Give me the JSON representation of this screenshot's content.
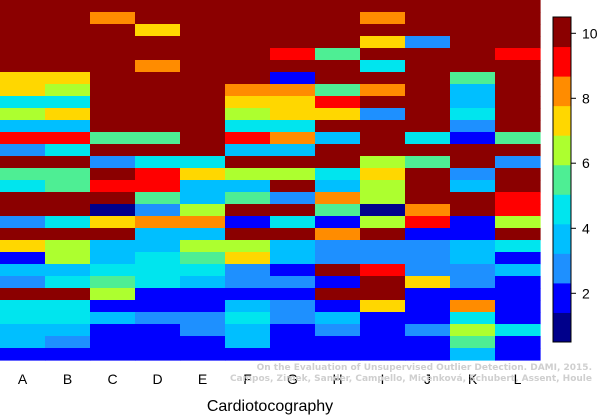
{
  "chart_data": {
    "type": "heatmap",
    "title": "",
    "xlabel": "Cardiotocography",
    "ylabel": "",
    "categories": [
      "A",
      "B",
      "C",
      "D",
      "E",
      "F",
      "G",
      "H",
      "I",
      "J",
      "K",
      "L"
    ],
    "colorbar": {
      "range": [
        0.5,
        10.5
      ],
      "ticks": [
        2,
        4,
        6,
        8,
        10
      ],
      "palette": [
        "#00008B",
        "#0000FF",
        "#1E90FF",
        "#00BFFF",
        "#00E5EE",
        "#4EEE94",
        "#ADFF2F",
        "#FFD700",
        "#FF8C00",
        "#FF0000",
        "#8B0000"
      ]
    },
    "rows": 30,
    "values": [
      [
        10,
        10,
        10,
        10,
        10,
        10,
        10,
        10,
        10,
        10,
        10,
        10
      ],
      [
        10,
        10,
        8,
        10,
        10,
        10,
        10,
        10,
        8,
        10,
        10,
        10
      ],
      [
        10,
        10,
        10,
        7,
        10,
        10,
        10,
        10,
        10,
        10,
        10,
        10
      ],
      [
        10,
        10,
        10,
        10,
        10,
        10,
        10,
        10,
        7,
        2,
        10,
        10
      ],
      [
        10,
        10,
        10,
        10,
        10,
        10,
        9,
        5,
        10,
        10,
        10,
        9
      ],
      [
        10,
        10,
        10,
        8,
        10,
        10,
        10,
        10,
        4,
        10,
        10,
        10
      ],
      [
        7,
        7,
        10,
        10,
        10,
        10,
        1,
        10,
        10,
        10,
        5,
        10
      ],
      [
        7,
        6,
        10,
        10,
        10,
        8,
        8,
        5,
        8,
        10,
        3,
        10
      ],
      [
        4,
        4,
        10,
        10,
        10,
        7,
        7,
        9,
        10,
        10,
        3,
        10
      ],
      [
        6,
        7,
        10,
        10,
        10,
        6,
        7,
        7,
        2,
        10,
        4,
        10
      ],
      [
        3,
        3,
        10,
        10,
        10,
        4,
        4,
        10,
        10,
        10,
        2,
        10
      ],
      [
        9,
        9,
        5,
        5,
        10,
        9,
        8,
        3,
        10,
        4,
        1,
        5
      ],
      [
        2,
        4,
        10,
        10,
        10,
        3,
        3,
        10,
        10,
        10,
        10,
        10
      ],
      [
        10,
        10,
        2,
        4,
        4,
        10,
        10,
        10,
        6,
        5,
        10,
        2
      ],
      [
        5,
        5,
        10,
        9,
        7,
        6,
        6,
        4,
        7,
        10,
        2,
        10
      ],
      [
        4,
        5,
        9,
        9,
        3,
        3,
        10,
        3,
        6,
        10,
        3,
        10
      ],
      [
        10,
        10,
        10,
        5,
        3,
        5,
        2,
        8,
        6,
        10,
        10,
        9
      ],
      [
        10,
        10,
        0,
        2,
        6,
        10,
        10,
        5,
        0,
        8,
        10,
        9
      ],
      [
        2,
        4,
        7,
        8,
        8,
        1,
        4,
        1,
        6,
        9,
        1,
        6
      ],
      [
        10,
        10,
        10,
        3,
        3,
        10,
        10,
        8,
        10,
        1,
        1,
        10
      ],
      [
        7,
        6,
        3,
        3,
        6,
        6,
        3,
        2,
        2,
        2,
        3,
        4
      ],
      [
        1,
        6,
        3,
        4,
        5,
        7,
        3,
        2,
        2,
        2,
        3,
        1
      ],
      [
        3,
        3,
        4,
        4,
        4,
        2,
        1,
        10,
        9,
        2,
        2,
        3
      ],
      [
        2,
        4,
        5,
        4,
        3,
        2,
        2,
        1,
        10,
        7,
        2,
        1
      ],
      [
        10,
        10,
        6,
        1,
        1,
        1,
        1,
        10,
        10,
        1,
        1,
        1
      ],
      [
        4,
        4,
        1,
        1,
        1,
        3,
        2,
        1,
        7,
        1,
        8,
        1
      ],
      [
        4,
        4,
        3,
        2,
        2,
        4,
        2,
        3,
        1,
        1,
        4,
        1
      ],
      [
        3,
        3,
        1,
        1,
        2,
        3,
        1,
        2,
        1,
        2,
        6,
        4
      ],
      [
        3,
        2,
        1,
        1,
        1,
        3,
        1,
        1,
        1,
        1,
        5,
        1
      ],
      [
        1,
        1,
        1,
        1,
        1,
        1,
        1,
        1,
        1,
        1,
        3,
        1
      ]
    ],
    "watermark": [
      "On the Evaluation of Unsupervised Outlier Detection. DAMI, 2015.",
      "Campos, Zimek, Sander, Campello, Micenková, Schubert, Assent, Houle"
    ]
  }
}
